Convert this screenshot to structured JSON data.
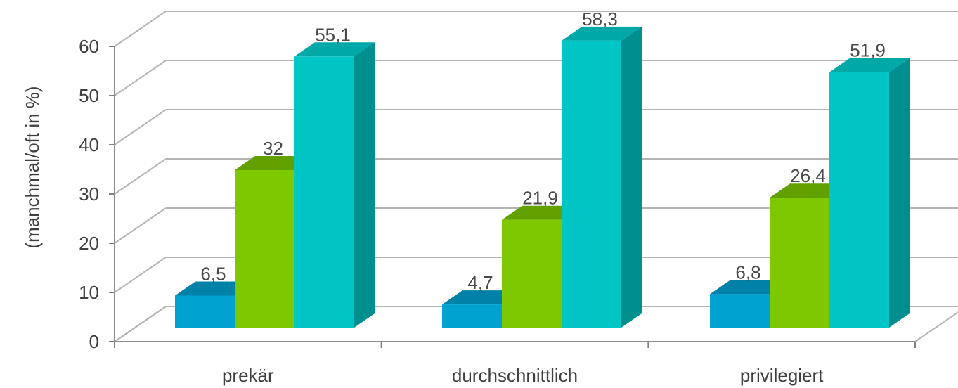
{
  "chart_data": {
    "type": "bar",
    "style": "3d-clustered-column",
    "categories": [
      "prekär",
      "durchschnittlich",
      "privilegiert"
    ],
    "series": [
      {
        "values": [
          6.5,
          4.7,
          6.8
        ],
        "color": "#00A2D0",
        "top_color": "#0082A8",
        "side_color": "#006F90"
      },
      {
        "values": [
          32,
          21.9,
          26.4
        ],
        "color": "#7DC800",
        "top_color": "#62A000",
        "side_color": "#558A00"
      },
      {
        "values": [
          55.1,
          58.3,
          51.9
        ],
        "color": "#00C5C5",
        "top_color": "#00A8A8",
        "side_color": "#008E8E"
      }
    ],
    "data_labels": [
      [
        "6,5",
        "4,7",
        "6,8"
      ],
      [
        "32",
        "21,9",
        "26,4"
      ],
      [
        "55,1",
        "58,3",
        "51,9"
      ]
    ],
    "ylabel": "(manchmal/oft in %)",
    "yticks": [
      "0",
      "10",
      "20",
      "30",
      "40",
      "50",
      "60"
    ],
    "ylim": [
      0,
      60
    ],
    "grid": true,
    "legend": "none",
    "wall_color": "#ffffff",
    "grid_color": "#b4b4b4"
  }
}
